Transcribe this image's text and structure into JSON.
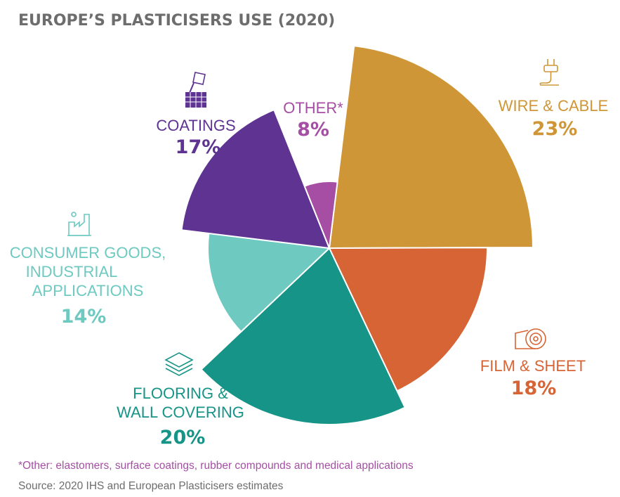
{
  "chart_data": {
    "type": "pie",
    "title": "EUROPE’S PLASTICISERS USE (2020)",
    "slices": [
      {
        "label": "WIRE & CABLE",
        "value": 23,
        "pct_label": "23%",
        "color": "#cf9637",
        "icon": "plug-icon"
      },
      {
        "label": "FILM & SHEET",
        "value": 18,
        "pct_label": "18%",
        "color": "#d66434",
        "icon": "film-roll-icon"
      },
      {
        "label": "FLOORING & WALL COVERING",
        "value": 20,
        "pct_label": "20%",
        "color": "#169487",
        "icon": "floor-tiles-icon"
      },
      {
        "label": "CONSUMER GOODS, INDUSTRIAL APPLICATIONS",
        "value": 14,
        "pct_label": "14%",
        "color": "#6ec9c1",
        "icon": "factory-icon"
      },
      {
        "label": "COATINGS",
        "value": 17,
        "pct_label": "17%",
        "color": "#5e3391",
        "icon": "paint-bucket-icon"
      },
      {
        "label": "OTHER*",
        "value": 8,
        "pct_label": "8%",
        "color": "#a54ea4",
        "icon": ""
      }
    ]
  },
  "footnote": "*Other: elastomers, surface coatings, rubber compounds and medical applications",
  "source": "Source: 2020 IHS and European Plasticisers estimates",
  "colors": {
    "title": "#6d6d6d",
    "footnote": "#a54ea4",
    "source": "#6d6d6d"
  }
}
